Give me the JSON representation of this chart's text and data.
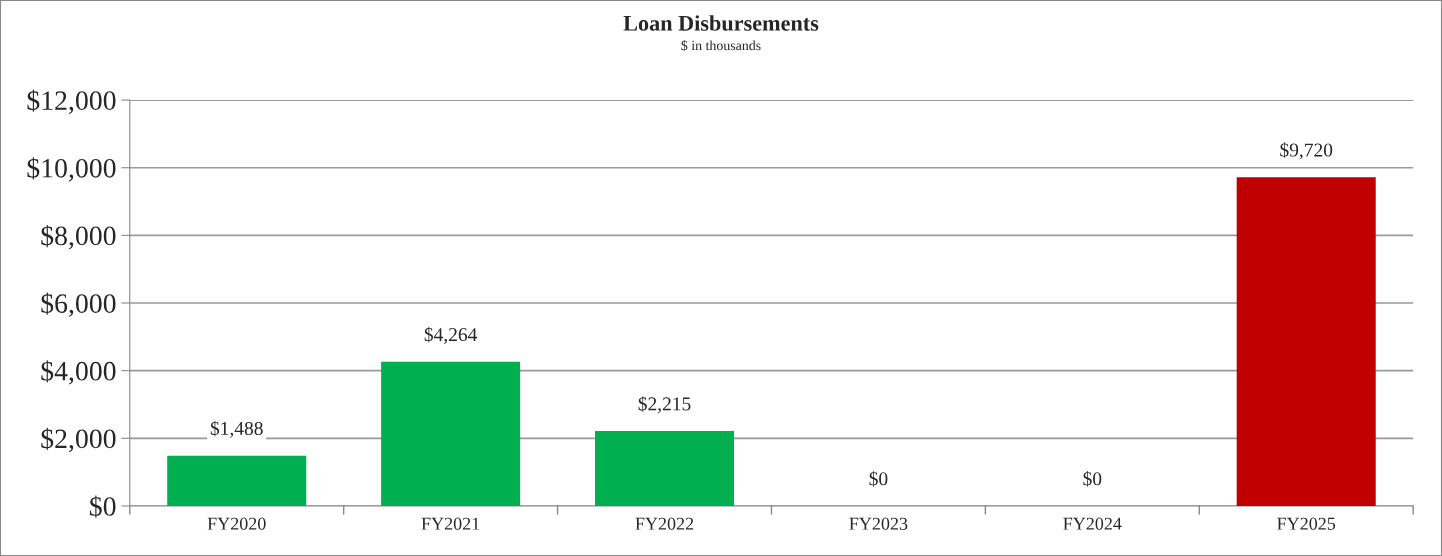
{
  "chart_data": {
    "type": "bar",
    "title": "Loan Disbursements",
    "subtitle": "$ in thousands",
    "categories": [
      "FY2020",
      "FY2021",
      "FY2022",
      "FY2023",
      "FY2024",
      "FY2025"
    ],
    "values": [
      1488,
      4264,
      2215,
      0,
      0,
      9720
    ],
    "colors": [
      "#00b050",
      "#00b050",
      "#00b050",
      "#00b050",
      "#00b050",
      "#c00000"
    ],
    "value_labels": [
      "$1,488",
      "$4,264",
      "$2,215",
      "$0",
      "$0",
      "$9,720"
    ],
    "ylim": [
      0,
      12000
    ],
    "yticks": [
      {
        "value": 0,
        "label": "$0"
      },
      {
        "value": 2000,
        "label": "$2,000"
      },
      {
        "value": 4000,
        "label": "$4,000"
      },
      {
        "value": 6000,
        "label": "$6,000"
      },
      {
        "value": 8000,
        "label": "$8,000"
      },
      {
        "value": 10000,
        "label": "$10,000"
      },
      {
        "value": 12000,
        "label": "$12,000"
      }
    ],
    "grid": "y",
    "legend": false
  }
}
